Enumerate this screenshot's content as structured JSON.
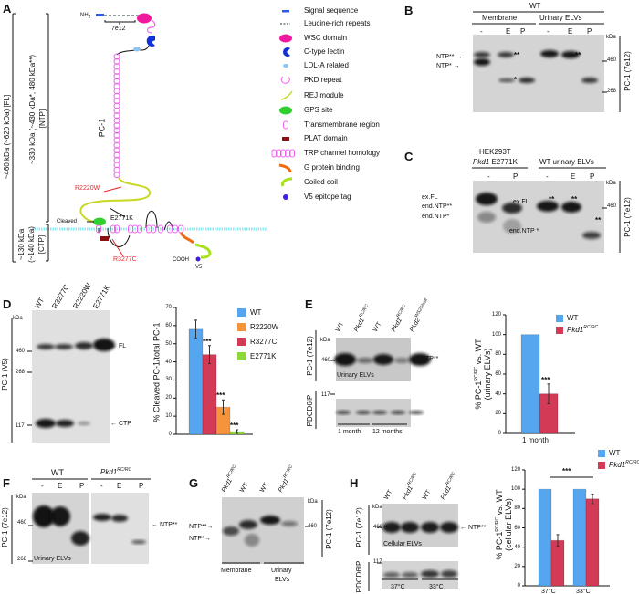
{
  "panels": {
    "a": "A",
    "b": "B",
    "c": "C",
    "d": "D",
    "e": "E",
    "f": "F",
    "g": "G",
    "h": "H"
  },
  "a": {
    "fl_label": "~460 kDa (~620 kDa) [FL]",
    "ntp_label": "~330 kDa (~430 kDa*, 480 kDa**)",
    "ntp_tag": "[NTP]",
    "ctp1": "~130 kDa",
    "ctp2": "(~140 kDa)",
    "ctp3": "[CTP]",
    "nh": "NH",
    "nh_sub": "2",
    "epitope": "7e12",
    "protein": "PC-1",
    "r2220w": "R2220W",
    "e2771k": "E2771K",
    "r3277c": "R3277C",
    "cleaved": "Cleaved",
    "cooh": "COOH",
    "v5": "V5",
    "legend": [
      "Signal sequence",
      "Leucine-rich repeats",
      "WSC domain",
      "C-type lectin",
      "LDL-A related",
      "PKD repeat",
      "REJ module",
      "GPS site",
      "Transmembrane region",
      "PLAT domain",
      "TRP channel homology",
      "G protein binding",
      "Coiled coil",
      "V5 epitope tag"
    ],
    "colors": {
      "signal": "#2c5be8",
      "lrr": "#6b7b7b",
      "wsc": "#f0189c",
      "lectin": "#1030d8",
      "ldl": "#8ec4f0",
      "pkd": "#f060f0",
      "rej": "#c8d820",
      "gps": "#30d030",
      "tm": "#f060f0",
      "plat": "#8b1010",
      "gprot": "#f06a10",
      "coil": "#a8e020",
      "v5": "#4020e0",
      "membrane": "#8ee8f0"
    }
  },
  "b": {
    "group": "WT",
    "membrane": "Membrane",
    "uelv": "Urinary ELVs",
    "lanes": [
      "-",
      "E",
      "P",
      "-",
      "E",
      "P"
    ],
    "kda": "kDa",
    "m460": "460",
    "m268": "268",
    "antibody": "PC-1 (7e12)",
    "ntp2": "NTP**",
    "ntp1": "NTP*",
    "ss": "**",
    "s": "*"
  },
  "c": {
    "cell": "HEK293T",
    "gene": "Pkd1",
    "mut": "E2771K",
    "wt": "WT urinary ELVs",
    "lanes": [
      "-",
      "P",
      "-",
      "E",
      "P"
    ],
    "kda": "kDa",
    "m460": "460",
    "antibody": "PC-1 (7e12)",
    "exfl": "ex.FL",
    "endntp2": "end.NTP**",
    "endntp1": "end.NTP*",
    "in_exfl": "ex.FL",
    "in_endntp": "end.NTP",
    "s": "*",
    "ss": "**"
  },
  "d": {
    "lanes": [
      "WT",
      "R3277C",
      "R2220W",
      "E2771K"
    ],
    "kda": "kDa",
    "m460": "460",
    "m268": "268",
    "m117": "117",
    "antibody": "PC-1 (V5)",
    "fl": "FL",
    "ctp": "CTP"
  },
  "e": {
    "lanes": [
      {
        "g": "WT",
        "s": ""
      },
      {
        "g": "Pkd1",
        "s": "RC/RC"
      },
      {
        "g": "WT",
        "s": ""
      },
      {
        "g": "Pkd1",
        "s": "RC/RC"
      },
      {
        "g": "Pkd2",
        "s": "WS25/null"
      }
    ],
    "kda": "kDa",
    "m460": "460",
    "m117": "117",
    "sample": "Urinary ELVs",
    "ntp": "NTP**",
    "ab1": "PC-1 (7e12)",
    "ab2": "PDCD6IP",
    "age1": "1 month",
    "age2": "12 months"
  },
  "f": {
    "wt": "WT",
    "gene": "Pkd1",
    "sup": "RC/RC",
    "lanes": [
      "-",
      "E",
      "P",
      "-",
      "E",
      "P"
    ],
    "kda": "kDa",
    "m460": "460",
    "m268": "268",
    "antibody": "PC-1 (7e12)",
    "ntp": "NTP**",
    "sample": "Urinary ELVs"
  },
  "g": {
    "lanes": [
      {
        "g": "Pkd1",
        "s": "RC/RC"
      },
      {
        "g": "WT",
        "s": ""
      },
      {
        "g": "WT",
        "s": ""
      },
      {
        "g": "Pkd1",
        "s": "RC/RC"
      }
    ],
    "kda": "kDa",
    "m460": "460",
    "antibody": "PC-1 (7e12)",
    "ntp2": "NTP**",
    "ntp1": "NTP*",
    "membrane": "Membrane",
    "uelv1": "Urinary",
    "uelv2": "ELVs"
  },
  "h": {
    "lanes": [
      {
        "g": "WT",
        "s": ""
      },
      {
        "g": "Pkd1",
        "s": "RC/RC"
      },
      {
        "g": "WT",
        "s": ""
      },
      {
        "g": "Pkd1",
        "s": "RC/RC"
      }
    ],
    "kda": "kDa",
    "m460": "460",
    "m117": "117",
    "sample": "Cellular ELVs",
    "ntp": "NTP**",
    "ab1": "PC-1 (7e12)",
    "ab2": "PDCD6IP",
    "t1": "37°C",
    "t2": "33°C"
  },
  "chart_data": [
    {
      "panel": "D",
      "type": "bar",
      "ylabel": "% Cleaved PC-1/total PC-1",
      "ylim": [
        0,
        70
      ],
      "yticks": [
        0,
        10,
        20,
        30,
        40,
        50,
        60,
        70
      ],
      "legend": [
        {
          "name": "WT",
          "color": "#55a6ef"
        },
        {
          "name": "R2220W",
          "color": "#f5943a"
        },
        {
          "name": "R3277C",
          "color": "#d23a55"
        },
        {
          "name": "E2771K",
          "color": "#8fd63a"
        }
      ],
      "bars": [
        {
          "series": "WT",
          "value": 58,
          "error": 5,
          "sig": ""
        },
        {
          "series": "R3277C",
          "value": 44,
          "error": 5,
          "sig": "***"
        },
        {
          "series": "R2220W",
          "value": 15,
          "error": 4,
          "sig": "***"
        },
        {
          "series": "E2771K",
          "value": 1.5,
          "error": 1,
          "sig": "***"
        }
      ]
    },
    {
      "panel": "E",
      "type": "bar",
      "ylabel": "% PC-1",
      "ylabel_sup": "RC/RC",
      "ylabel_rest": " vs. WT",
      "ylabel2": "(urinary ELVs)",
      "ylim": [
        0,
        120
      ],
      "yticks": [
        0,
        20,
        40,
        60,
        80,
        100,
        120
      ],
      "categories": [
        "1 month"
      ],
      "legend": [
        {
          "name": "WT",
          "sup": "",
          "color": "#55a6ef"
        },
        {
          "name": "Pkd1",
          "sup": "RC/RC",
          "color": "#d23a55"
        }
      ],
      "series": [
        {
          "name": "WT",
          "values": [
            100
          ],
          "errors": [
            0
          ]
        },
        {
          "name": "Pkd1 RC/RC",
          "values": [
            40
          ],
          "errors": [
            10
          ],
          "sig": [
            "***"
          ]
        }
      ]
    },
    {
      "panel": "H",
      "type": "bar",
      "ylabel": "% PC-1",
      "ylabel_sup": "RC/RC",
      "ylabel_rest": " vs. WT",
      "ylabel2": "(cellular ELVs)",
      "ylim": [
        0,
        120
      ],
      "yticks": [
        0,
        20,
        40,
        60,
        80,
        100,
        120
      ],
      "categories": [
        "37°C",
        "33°C"
      ],
      "legend": [
        {
          "name": "WT",
          "sup": "",
          "color": "#55a6ef"
        },
        {
          "name": "Pkd1",
          "sup": "RC/RC",
          "color": "#d23a55"
        }
      ],
      "series": [
        {
          "name": "WT",
          "values": [
            100,
            100
          ],
          "errors": [
            0,
            0
          ]
        },
        {
          "name": "Pkd1 RC/RC",
          "values": [
            47,
            90
          ],
          "errors": [
            6,
            5
          ]
        }
      ],
      "comparison": {
        "between": [
          "37°C",
          "33°C"
        ],
        "sig": "***"
      }
    }
  ]
}
